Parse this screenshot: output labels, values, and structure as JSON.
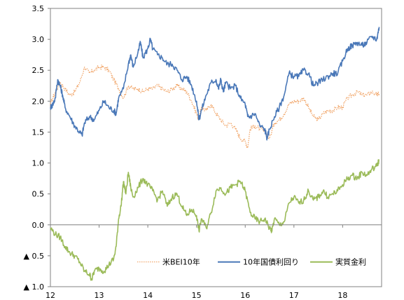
{
  "chart_data": {
    "type": "line",
    "title": "",
    "xlabel": "",
    "ylabel": "",
    "xlim": [
      12,
      18.8
    ],
    "ylim": [
      -1.0,
      3.5
    ],
    "x_ticks": [
      "12",
      "13",
      "14",
      "15",
      "16",
      "17",
      "18"
    ],
    "y_ticks": [
      {
        "value": 3.5,
        "label": "3.5"
      },
      {
        "value": 3.0,
        "label": "3.0"
      },
      {
        "value": 2.5,
        "label": "2.5"
      },
      {
        "value": 2.0,
        "label": "2.0"
      },
      {
        "value": 1.5,
        "label": "1.5"
      },
      {
        "value": 1.0,
        "label": "1.0"
      },
      {
        "value": 0.5,
        "label": "0.5"
      },
      {
        "value": 0.0,
        "label": "0.0"
      },
      {
        "value": -0.5,
        "label": "▲ 0.5"
      },
      {
        "value": -1.0,
        "label": "▲ 1.0"
      }
    ],
    "grid": false,
    "legend_position": "bottom-right",
    "series": [
      {
        "name": "米BEI10年",
        "color": "#f0a060",
        "style": "dotted",
        "points": [
          [
            12.0,
            1.95
          ],
          [
            12.1,
            2.15
          ],
          [
            12.2,
            2.3
          ],
          [
            12.3,
            2.2
          ],
          [
            12.4,
            2.1
          ],
          [
            12.5,
            2.15
          ],
          [
            12.6,
            2.3
          ],
          [
            12.7,
            2.55
          ],
          [
            12.8,
            2.45
          ],
          [
            12.9,
            2.5
          ],
          [
            13.0,
            2.55
          ],
          [
            13.1,
            2.55
          ],
          [
            13.2,
            2.5
          ],
          [
            13.3,
            2.35
          ],
          [
            13.4,
            2.2
          ],
          [
            13.5,
            2.05
          ],
          [
            13.6,
            2.25
          ],
          [
            13.7,
            2.2
          ],
          [
            13.8,
            2.2
          ],
          [
            13.9,
            2.15
          ],
          [
            14.0,
            2.2
          ],
          [
            14.1,
            2.2
          ],
          [
            14.2,
            2.25
          ],
          [
            14.3,
            2.2
          ],
          [
            14.4,
            2.15
          ],
          [
            14.5,
            2.2
          ],
          [
            14.6,
            2.25
          ],
          [
            14.7,
            2.2
          ],
          [
            14.8,
            2.15
          ],
          [
            14.9,
            2.0
          ],
          [
            15.0,
            1.8
          ],
          [
            15.05,
            1.7
          ],
          [
            15.1,
            1.9
          ],
          [
            15.2,
            1.85
          ],
          [
            15.3,
            1.95
          ],
          [
            15.4,
            1.8
          ],
          [
            15.5,
            1.7
          ],
          [
            15.6,
            1.6
          ],
          [
            15.7,
            1.65
          ],
          [
            15.8,
            1.55
          ],
          [
            15.9,
            1.4
          ],
          [
            16.0,
            1.35
          ],
          [
            16.05,
            1.25
          ],
          [
            16.1,
            1.55
          ],
          [
            16.2,
            1.6
          ],
          [
            16.3,
            1.55
          ],
          [
            16.4,
            1.5
          ],
          [
            16.5,
            1.4
          ],
          [
            16.6,
            1.65
          ],
          [
            16.7,
            1.7
          ],
          [
            16.8,
            1.8
          ],
          [
            16.9,
            1.95
          ],
          [
            17.0,
            2.0
          ],
          [
            17.1,
            2.0
          ],
          [
            17.2,
            2.05
          ],
          [
            17.3,
            1.9
          ],
          [
            17.4,
            1.75
          ],
          [
            17.5,
            1.7
          ],
          [
            17.6,
            1.8
          ],
          [
            17.7,
            1.85
          ],
          [
            17.8,
            1.85
          ],
          [
            17.9,
            1.9
          ],
          [
            18.0,
            1.9
          ],
          [
            18.1,
            2.05
          ],
          [
            18.2,
            2.1
          ],
          [
            18.3,
            2.15
          ],
          [
            18.4,
            2.1
          ],
          [
            18.5,
            2.1
          ],
          [
            18.6,
            2.15
          ],
          [
            18.7,
            2.1
          ],
          [
            18.75,
            2.12
          ]
        ]
      },
      {
        "name": "10年国債利回り",
        "color": "#4a78b8",
        "style": "solid",
        "points": [
          [
            12.0,
            1.9
          ],
          [
            12.05,
            1.95
          ],
          [
            12.1,
            2.05
          ],
          [
            12.15,
            2.35
          ],
          [
            12.2,
            2.25
          ],
          [
            12.25,
            2.1
          ],
          [
            12.3,
            1.9
          ],
          [
            12.4,
            1.75
          ],
          [
            12.5,
            1.6
          ],
          [
            12.6,
            1.5
          ],
          [
            12.65,
            1.45
          ],
          [
            12.7,
            1.65
          ],
          [
            12.8,
            1.75
          ],
          [
            12.9,
            1.7
          ],
          [
            13.0,
            1.85
          ],
          [
            13.1,
            2.0
          ],
          [
            13.2,
            1.9
          ],
          [
            13.3,
            1.85
          ],
          [
            13.35,
            1.8
          ],
          [
            13.4,
            2.05
          ],
          [
            13.5,
            2.2
          ],
          [
            13.6,
            2.6
          ],
          [
            13.65,
            2.75
          ],
          [
            13.7,
            2.55
          ],
          [
            13.8,
            2.8
          ],
          [
            13.85,
            2.95
          ],
          [
            13.9,
            2.7
          ],
          [
            14.0,
            2.85
          ],
          [
            14.05,
            3.0
          ],
          [
            14.1,
            2.85
          ],
          [
            14.2,
            2.75
          ],
          [
            14.3,
            2.7
          ],
          [
            14.4,
            2.6
          ],
          [
            14.5,
            2.6
          ],
          [
            14.6,
            2.5
          ],
          [
            14.7,
            2.35
          ],
          [
            14.8,
            2.4
          ],
          [
            14.9,
            2.25
          ],
          [
            15.0,
            2.0
          ],
          [
            15.05,
            1.7
          ],
          [
            15.1,
            1.85
          ],
          [
            15.2,
            2.1
          ],
          [
            15.3,
            2.3
          ],
          [
            15.4,
            2.35
          ],
          [
            15.45,
            2.2
          ],
          [
            15.5,
            2.35
          ],
          [
            15.55,
            2.15
          ],
          [
            15.6,
            2.3
          ],
          [
            15.7,
            2.2
          ],
          [
            15.8,
            2.25
          ],
          [
            15.9,
            2.05
          ],
          [
            16.0,
            1.95
          ],
          [
            16.05,
            1.75
          ],
          [
            16.1,
            1.75
          ],
          [
            16.2,
            1.8
          ],
          [
            16.3,
            1.6
          ],
          [
            16.4,
            1.55
          ],
          [
            16.45,
            1.4
          ],
          [
            16.5,
            1.55
          ],
          [
            16.6,
            1.75
          ],
          [
            16.7,
            1.9
          ],
          [
            16.8,
            2.1
          ],
          [
            16.9,
            2.45
          ],
          [
            17.0,
            2.4
          ],
          [
            17.1,
            2.4
          ],
          [
            17.2,
            2.5
          ],
          [
            17.3,
            2.45
          ],
          [
            17.4,
            2.25
          ],
          [
            17.5,
            2.3
          ],
          [
            17.6,
            2.35
          ],
          [
            17.7,
            2.4
          ],
          [
            17.8,
            2.45
          ],
          [
            17.9,
            2.45
          ],
          [
            18.0,
            2.65
          ],
          [
            18.1,
            2.85
          ],
          [
            18.2,
            2.9
          ],
          [
            18.3,
            2.95
          ],
          [
            18.4,
            2.9
          ],
          [
            18.5,
            2.95
          ],
          [
            18.6,
            3.05
          ],
          [
            18.7,
            3.0
          ],
          [
            18.75,
            3.2
          ]
        ]
      },
      {
        "name": "実質金利",
        "color": "#9bbb59",
        "style": "solid",
        "points": [
          [
            12.0,
            -0.05
          ],
          [
            12.1,
            -0.15
          ],
          [
            12.2,
            -0.2
          ],
          [
            12.3,
            -0.35
          ],
          [
            12.4,
            -0.45
          ],
          [
            12.5,
            -0.5
          ],
          [
            12.6,
            -0.6
          ],
          [
            12.7,
            -0.75
          ],
          [
            12.8,
            -0.8
          ],
          [
            12.85,
            -0.88
          ],
          [
            12.9,
            -0.75
          ],
          [
            13.0,
            -0.7
          ],
          [
            13.1,
            -0.75
          ],
          [
            13.2,
            -0.65
          ],
          [
            13.3,
            -0.55
          ],
          [
            13.35,
            -0.35
          ],
          [
            13.4,
            0.1
          ],
          [
            13.45,
            0.3
          ],
          [
            13.5,
            0.7
          ],
          [
            13.55,
            0.5
          ],
          [
            13.6,
            0.85
          ],
          [
            13.65,
            0.6
          ],
          [
            13.7,
            0.45
          ],
          [
            13.8,
            0.6
          ],
          [
            13.9,
            0.75
          ],
          [
            14.0,
            0.65
          ],
          [
            14.1,
            0.55
          ],
          [
            14.2,
            0.4
          ],
          [
            14.3,
            0.55
          ],
          [
            14.4,
            0.3
          ],
          [
            14.5,
            0.45
          ],
          [
            14.6,
            0.5
          ],
          [
            14.7,
            0.3
          ],
          [
            14.8,
            0.15
          ],
          [
            14.9,
            0.25
          ],
          [
            15.0,
            0.15
          ],
          [
            15.05,
            -0.1
          ],
          [
            15.1,
            0.1
          ],
          [
            15.2,
            -0.05
          ],
          [
            15.3,
            0.2
          ],
          [
            15.4,
            0.55
          ],
          [
            15.5,
            0.6
          ],
          [
            15.6,
            0.5
          ],
          [
            15.7,
            0.6
          ],
          [
            15.8,
            0.65
          ],
          [
            15.9,
            0.7
          ],
          [
            16.0,
            0.55
          ],
          [
            16.1,
            0.2
          ],
          [
            16.2,
            0.1
          ],
          [
            16.3,
            0.05
          ],
          [
            16.4,
            0.1
          ],
          [
            16.5,
            -0.05
          ],
          [
            16.55,
            -0.1
          ],
          [
            16.6,
            0.1
          ],
          [
            16.7,
            0.0
          ],
          [
            16.8,
            0.05
          ],
          [
            16.9,
            0.35
          ],
          [
            17.0,
            0.45
          ],
          [
            17.1,
            0.35
          ],
          [
            17.2,
            0.4
          ],
          [
            17.3,
            0.55
          ],
          [
            17.4,
            0.4
          ],
          [
            17.5,
            0.45
          ],
          [
            17.6,
            0.55
          ],
          [
            17.7,
            0.45
          ],
          [
            17.8,
            0.5
          ],
          [
            17.9,
            0.55
          ],
          [
            18.0,
            0.65
          ],
          [
            18.1,
            0.75
          ],
          [
            18.2,
            0.8
          ],
          [
            18.3,
            0.75
          ],
          [
            18.4,
            0.85
          ],
          [
            18.5,
            0.8
          ],
          [
            18.6,
            0.9
          ],
          [
            18.7,
            0.95
          ],
          [
            18.75,
            1.05
          ]
        ]
      }
    ]
  }
}
